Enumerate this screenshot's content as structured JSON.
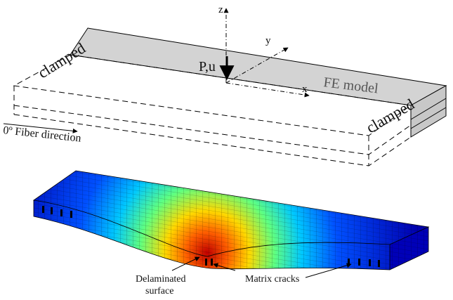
{
  "labels": {
    "z": "z",
    "y": "y",
    "x": "x",
    "load": "P,u",
    "model": "FE model",
    "clamped_left": "clamped",
    "clamped_right": "clamped",
    "fiber": "0º Fiber direction",
    "delaminated": [
      "Delaminated",
      "surface"
    ],
    "cracks": "Matrix cracks"
  }
}
